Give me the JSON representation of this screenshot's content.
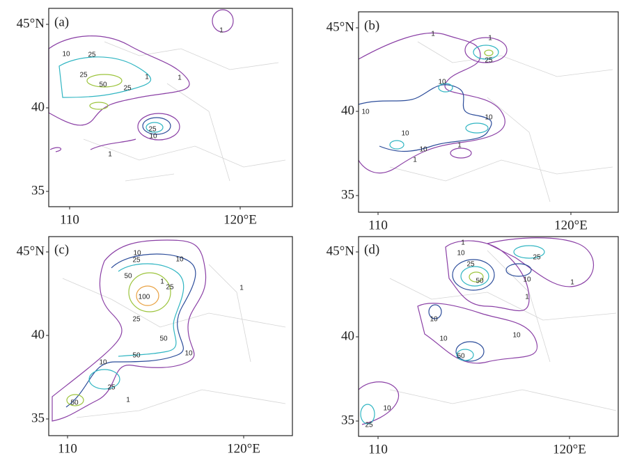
{
  "panels": [
    {
      "label": "(a)",
      "lat_labels": [
        "45°N",
        "40",
        "35"
      ],
      "lon_labels": [
        "110",
        "120°E"
      ],
      "contour_labels": [
        "1",
        "10",
        "25",
        "25",
        "50",
        "25",
        "1",
        "25",
        "10",
        "1",
        "1"
      ]
    },
    {
      "label": "(b)",
      "lat_labels": [
        "45°N",
        "40",
        "35"
      ],
      "lon_labels": [
        "110",
        "120°E"
      ],
      "contour_labels": [
        "1",
        "1",
        "25",
        "10",
        "10",
        "10",
        "10",
        "10",
        "1",
        "1"
      ]
    },
    {
      "label": "(c)",
      "lat_labels": [
        "45°N",
        "40",
        "35"
      ],
      "lon_labels": [
        "110",
        "120°E"
      ],
      "contour_labels": [
        "10",
        "25",
        "10",
        "50",
        "100",
        "25",
        "1",
        "25",
        "50",
        "50",
        "10",
        "10",
        "25",
        "50",
        "1",
        "1"
      ]
    },
    {
      "label": "(d)",
      "lat_labels": [
        "45°N",
        "40",
        "35"
      ],
      "lon_labels": [
        "110",
        "120°E"
      ],
      "contour_labels": [
        "1",
        "10",
        "25",
        "50",
        "10",
        "25",
        "10",
        "10",
        "10",
        "50",
        "10",
        "25",
        "1",
        "1"
      ]
    }
  ]
}
